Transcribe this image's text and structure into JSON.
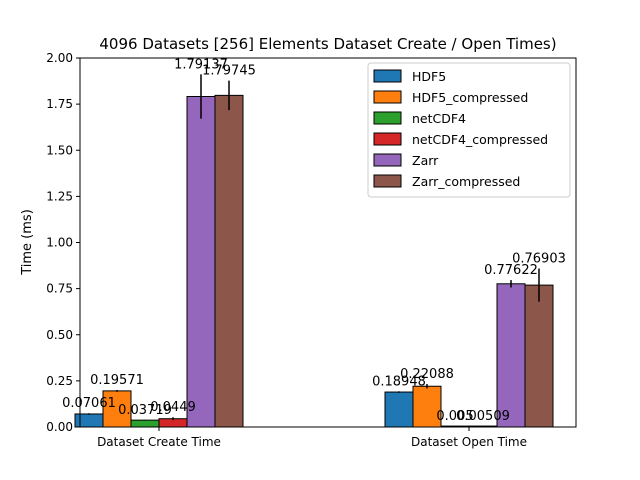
{
  "chart_data": {
    "type": "bar",
    "title": "4096 Datasets [256] Elements Dataset Create / Open Times)",
    "xlabel": "",
    "ylabel": "Time (ms)",
    "ylim": [
      0,
      2.0
    ],
    "yticks": [
      "0.00",
      "0.25",
      "0.50",
      "0.75",
      "1.00",
      "1.25",
      "1.50",
      "1.75",
      "2.00"
    ],
    "grid": false,
    "legend_position": "top-right",
    "categories": [
      "Dataset Create Time",
      "Dataset Open Time"
    ],
    "series": [
      {
        "name": "HDF5",
        "color": "#1f77b4",
        "values": [
          0.07061,
          0.18948
        ],
        "errors": [
          0.004,
          0.004
        ],
        "labels": [
          "0.07061",
          "0.18948"
        ]
      },
      {
        "name": "HDF5_compressed",
        "color": "#ff7f0e",
        "values": [
          0.19571,
          0.22088
        ],
        "errors": [
          0.005,
          0.012
        ],
        "labels": [
          "0.19571",
          "0.22088"
        ]
      },
      {
        "name": "netCDF4",
        "color": "#2ca02c",
        "values": [
          0.03719,
          0.005
        ],
        "errors": [
          0.002,
          0.001
        ],
        "labels": [
          "0.03719",
          "0.005"
        ]
      },
      {
        "name": "netCDF4_compressed",
        "color": "#d62728",
        "values": [
          0.0449,
          0.00509
        ],
        "errors": [
          0.008,
          0.001
        ],
        "labels": [
          "0.0449",
          "0.00509"
        ]
      },
      {
        "name": "Zarr",
        "color": "#9467bd",
        "values": [
          1.79137,
          0.77622
        ],
        "errors": [
          0.12,
          0.02
        ],
        "labels": [
          "1.79137",
          "0.77622"
        ]
      },
      {
        "name": "Zarr_compressed",
        "color": "#8c564b",
        "values": [
          1.79745,
          0.76903
        ],
        "errors": [
          0.08,
          0.09
        ],
        "labels": [
          "1.79745",
          "0.76903"
        ]
      }
    ]
  }
}
